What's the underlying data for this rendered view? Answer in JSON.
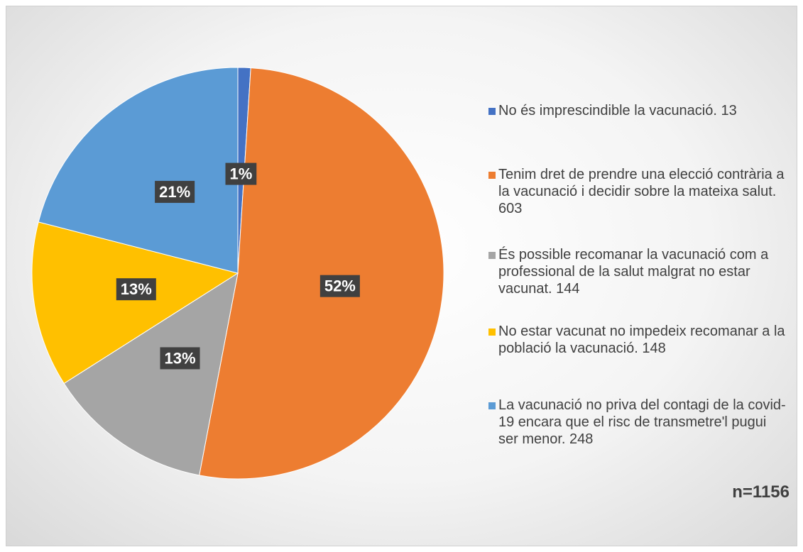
{
  "chart_data": {
    "type": "pie",
    "categories": [
      "No és imprescindible la vacunació. 13",
      "Tenim dret de prendre una elecció contrària a la vacunació i decidir sobre la mateixa salut. 603",
      "És possible recomanar la vacunació com a professional de la salut malgrat no estar vacunat. 144",
      "No estar vacunat no impedeix recomanar a la població la vacunació. 148",
      "La vacunació no priva del contagi de la covid-19 encara que el risc de transmetre'l pugui ser menor. 248"
    ],
    "values": [
      1,
      52,
      13,
      13,
      21
    ],
    "value_labels": [
      "1%",
      "52%",
      "13%",
      "13%",
      "21%"
    ],
    "colors": [
      "#4472c4",
      "#ed7d31",
      "#a5a5a5",
      "#ffc000",
      "#5b9bd5"
    ],
    "annotation": "n=1156",
    "legend": "right"
  }
}
